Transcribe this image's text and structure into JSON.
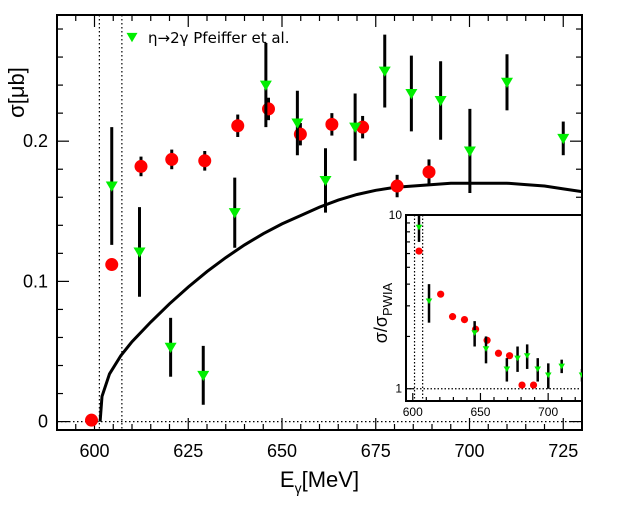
{
  "chart_data": [
    {
      "type": "scatter",
      "name": "main",
      "xlabel": "E",
      "xlabel_sub": "γ",
      "xlabel_unit": "[MeV]",
      "ylabel": "σ[μb]",
      "xlim": [
        590,
        730
      ],
      "ylim": [
        -0.006,
        0.29
      ],
      "xticks": [
        600,
        625,
        650,
        675,
        700,
        725
      ],
      "yticks": [
        0,
        0.1,
        0.2
      ],
      "ytick_labels": [
        "0",
        "0.1",
        "0.2"
      ],
      "threshold_lines_x": [
        601.3,
        607.3
      ],
      "zero_line_y": 0,
      "legend": {
        "label": "η→2γ Pfeiffer et al.",
        "position": "top-left"
      },
      "series": [
        {
          "name": "red circles",
          "color": "#ff0000",
          "marker": "circle",
          "points": [
            {
              "x": 599.2,
              "y": 0.001,
              "err": 0.0
            },
            {
              "x": 604.6,
              "y": 0.112,
              "err": 0.004
            },
            {
              "x": 612.4,
              "y": 0.182,
              "err": 0.007
            },
            {
              "x": 620.6,
              "y": 0.187,
              "err": 0.007
            },
            {
              "x": 629.4,
              "y": 0.186,
              "err": 0.007
            },
            {
              "x": 638.2,
              "y": 0.211,
              "err": 0.008
            },
            {
              "x": 646.4,
              "y": 0.223,
              "err": 0.008
            },
            {
              "x": 654.9,
              "y": 0.205,
              "err": 0.008
            },
            {
              "x": 663.3,
              "y": 0.212,
              "err": 0.008
            },
            {
              "x": 671.5,
              "y": 0.21,
              "err": 0.008
            },
            {
              "x": 680.7,
              "y": 0.168,
              "err": 0.008
            },
            {
              "x": 689.2,
              "y": 0.178,
              "err": 0.009
            }
          ]
        },
        {
          "name": "η→2γ Pfeiffer et al.",
          "color": "#00ee00",
          "marker": "triangle-down",
          "points": [
            {
              "x": 604.6,
              "y": 0.168,
              "err": 0.042
            },
            {
              "x": 612.0,
              "y": 0.121,
              "err": 0.032
            },
            {
              "x": 620.3,
              "y": 0.053,
              "err": 0.021
            },
            {
              "x": 629.0,
              "y": 0.033,
              "err": 0.021
            },
            {
              "x": 637.4,
              "y": 0.149,
              "err": 0.025
            },
            {
              "x": 645.7,
              "y": 0.24,
              "err": 0.03
            },
            {
              "x": 654.1,
              "y": 0.213,
              "err": 0.023
            },
            {
              "x": 661.6,
              "y": 0.172,
              "err": 0.023
            },
            {
              "x": 669.5,
              "y": 0.21,
              "err": 0.024
            },
            {
              "x": 677.4,
              "y": 0.25,
              "err": 0.026
            },
            {
              "x": 684.5,
              "y": 0.234,
              "err": 0.027
            },
            {
              "x": 692.3,
              "y": 0.229,
              "err": 0.028
            },
            {
              "x": 700.1,
              "y": 0.193,
              "err": 0.03
            },
            {
              "x": 710.0,
              "y": 0.242,
              "err": 0.02
            },
            {
              "x": 725.0,
              "y": 0.202,
              "err": 0.012
            }
          ]
        }
      ],
      "curve": {
        "name": "theory",
        "color": "#000000",
        "points": [
          [
            601.5,
            0.0
          ],
          [
            602,
            0.018
          ],
          [
            604,
            0.034
          ],
          [
            607,
            0.047
          ],
          [
            610,
            0.057
          ],
          [
            615,
            0.071
          ],
          [
            620,
            0.084
          ],
          [
            625,
            0.096
          ],
          [
            630,
            0.107
          ],
          [
            635,
            0.117
          ],
          [
            640,
            0.126
          ],
          [
            645,
            0.134
          ],
          [
            650,
            0.141
          ],
          [
            655,
            0.147
          ],
          [
            660,
            0.153
          ],
          [
            665,
            0.158
          ],
          [
            670,
            0.162
          ],
          [
            675,
            0.165
          ],
          [
            680,
            0.167
          ],
          [
            685,
            0.168
          ],
          [
            690,
            0.169
          ],
          [
            695,
            0.17
          ],
          [
            700,
            0.17
          ],
          [
            705,
            0.17
          ],
          [
            710,
            0.17
          ],
          [
            715,
            0.169
          ],
          [
            720,
            0.168
          ],
          [
            725,
            0.166
          ],
          [
            730,
            0.164
          ]
        ]
      }
    },
    {
      "type": "scatter",
      "name": "inset",
      "ylabel": "σ/σ",
      "ylabel_sub": "PWIA",
      "yscale": "log",
      "xlim": [
        595,
        725
      ],
      "ylim": [
        0.85,
        10
      ],
      "xticks": [
        600,
        650,
        700
      ],
      "yticks": [
        1,
        10
      ],
      "threshold_lines_x": [
        601.3,
        607.3
      ],
      "unity_line_y": 1,
      "series": [
        {
          "name": "red circles",
          "color": "#ff0000",
          "marker": "circle",
          "points": [
            {
              "x": 604.6,
              "y": 6.2,
              "err": 0.0
            },
            {
              "x": 620.6,
              "y": 3.5,
              "err": 0.0
            },
            {
              "x": 629.4,
              "y": 2.6,
              "err": 0.0
            },
            {
              "x": 638.2,
              "y": 2.5,
              "err": 0.0
            },
            {
              "x": 646.4,
              "y": 2.2,
              "err": 0.0
            },
            {
              "x": 654.9,
              "y": 1.9,
              "err": 0.0
            },
            {
              "x": 663.3,
              "y": 1.6,
              "err": 0.0
            },
            {
              "x": 671.5,
              "y": 1.55,
              "err": 0.0
            },
            {
              "x": 680.7,
              "y": 1.05,
              "err": 0.0
            },
            {
              "x": 689.2,
              "y": 1.05,
              "err": 0.0
            }
          ]
        },
        {
          "name": "η→2γ Pfeiffer et al.",
          "color": "#00ee00",
          "marker": "triangle-down",
          "points": [
            {
              "x": 604.6,
              "y": 8.5,
              "err": 1.5
            },
            {
              "x": 612.0,
              "y": 3.2,
              "err": 0.8
            },
            {
              "x": 645.7,
              "y": 2.1,
              "err": 0.35
            },
            {
              "x": 654.1,
              "y": 1.7,
              "err": 0.3
            },
            {
              "x": 669.5,
              "y": 1.3,
              "err": 0.2
            },
            {
              "x": 677.4,
              "y": 1.5,
              "err": 0.25
            },
            {
              "x": 684.5,
              "y": 1.55,
              "err": 0.25
            },
            {
              "x": 692.3,
              "y": 1.3,
              "err": 0.2
            },
            {
              "x": 700.1,
              "y": 1.2,
              "err": 0.2
            },
            {
              "x": 710.0,
              "y": 1.35,
              "err": 0.12
            },
            {
              "x": 725.0,
              "y": 1.2,
              "err": 0.1
            }
          ]
        }
      ]
    }
  ]
}
